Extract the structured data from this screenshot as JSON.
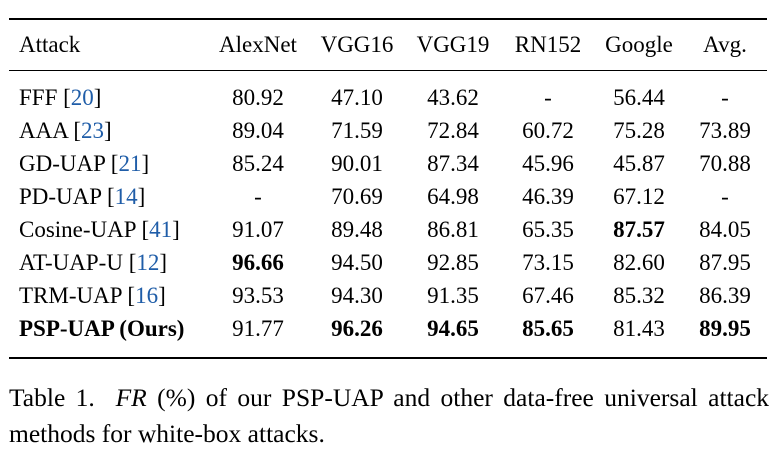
{
  "table": {
    "headers": [
      "Attack",
      "AlexNet",
      "VGG16",
      "VGG19",
      "RN152",
      "Google",
      "Avg."
    ],
    "rows": [
      {
        "name": "FFF",
        "ref": "20",
        "values": [
          "80.92",
          "47.10",
          "43.62",
          "-",
          "56.44",
          "-"
        ],
        "bold_name": false,
        "bold_cells": []
      },
      {
        "name": "AAA",
        "ref": "23",
        "values": [
          "89.04",
          "71.59",
          "72.84",
          "60.72",
          "75.28",
          "73.89"
        ],
        "bold_name": false,
        "bold_cells": []
      },
      {
        "name": "GD-UAP",
        "ref": "21",
        "values": [
          "85.24",
          "90.01",
          "87.34",
          "45.96",
          "45.87",
          "70.88"
        ],
        "bold_name": false,
        "bold_cells": []
      },
      {
        "name": "PD-UAP",
        "ref": "14",
        "values": [
          "-",
          "70.69",
          "64.98",
          "46.39",
          "67.12",
          "-"
        ],
        "bold_name": false,
        "bold_cells": []
      },
      {
        "name": "Cosine-UAP",
        "ref": "41",
        "values": [
          "91.07",
          "89.48",
          "86.81",
          "65.35",
          "87.57",
          "84.05"
        ],
        "bold_name": false,
        "bold_cells": [
          4
        ]
      },
      {
        "name": "AT-UAP-U",
        "ref": "12",
        "values": [
          "96.66",
          "94.50",
          "92.85",
          "73.15",
          "82.60",
          "87.95"
        ],
        "bold_name": false,
        "bold_cells": [
          0
        ]
      },
      {
        "name": "TRM-UAP",
        "ref": "16",
        "values": [
          "93.53",
          "94.30",
          "91.35",
          "67.46",
          "85.32",
          "86.39"
        ],
        "bold_name": false,
        "bold_cells": []
      },
      {
        "name": "PSP-UAP (Ours)",
        "ref": "",
        "values": [
          "91.77",
          "96.26",
          "94.65",
          "85.65",
          "81.43",
          "89.95"
        ],
        "bold_name": true,
        "bold_cells": [
          1,
          2,
          3,
          5
        ]
      }
    ]
  },
  "caption": {
    "label": "Table 1.",
    "math": "FR",
    "text": "(%) of our PSP-UAP and other data-free universal attack methods for white-box attacks."
  }
}
